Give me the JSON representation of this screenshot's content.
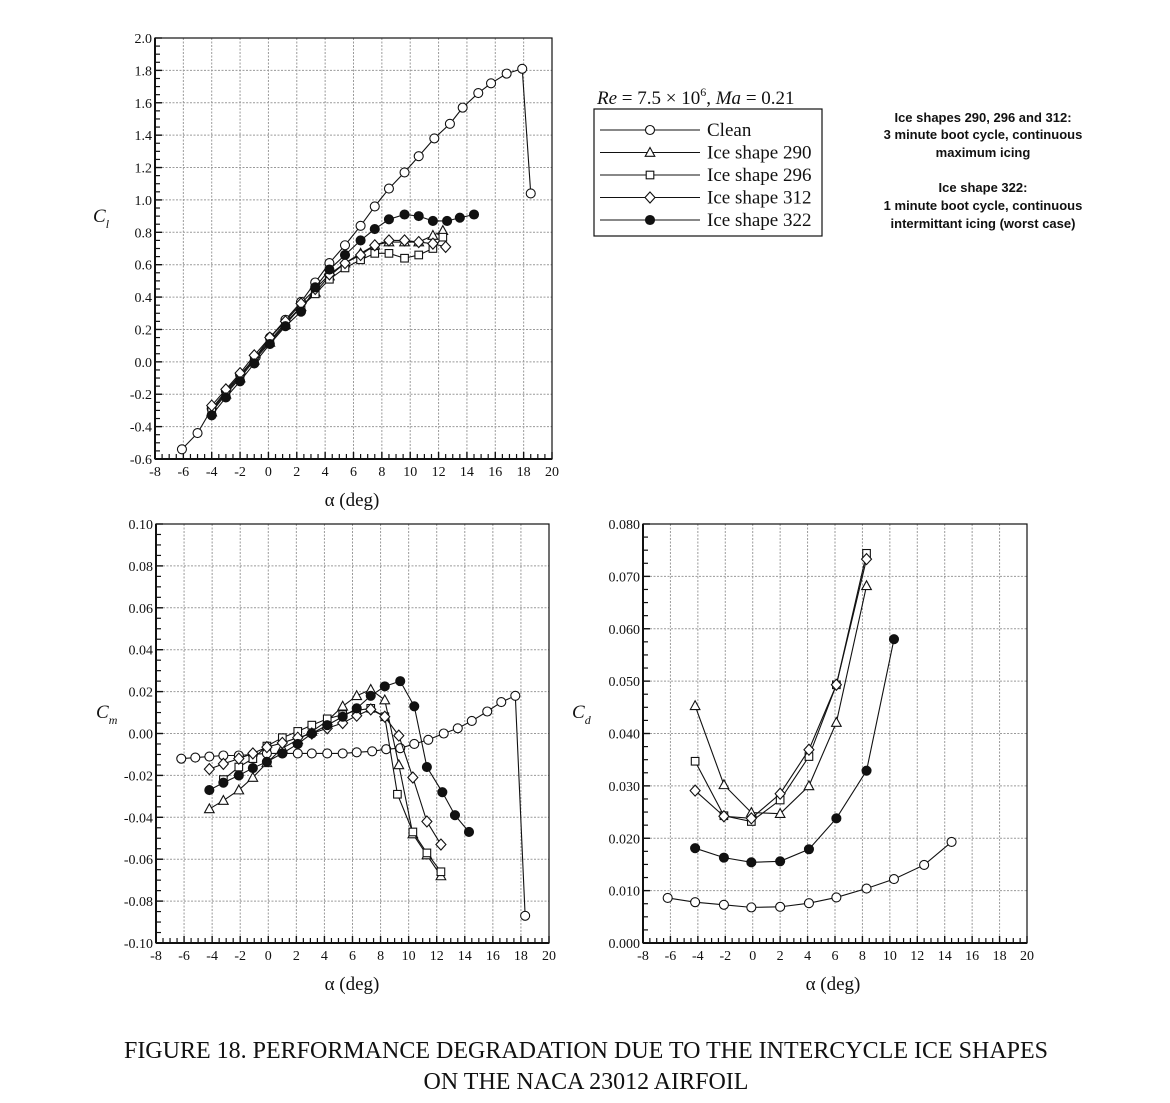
{
  "legend": {
    "title": "Re = 7.5 × 10⁶, Ma = 0.21",
    "title_parts": {
      "re": "Re",
      "eq1": " = 7.5 × 10",
      "exp": "6",
      "comma": ", ",
      "ma": "Ma",
      "eq2": " = 0.21"
    },
    "entries": [
      {
        "label": "Clean",
        "marker": "open-circle"
      },
      {
        "label": "Ice shape 290",
        "marker": "open-triangle"
      },
      {
        "label": "Ice shape 296",
        "marker": "open-square"
      },
      {
        "label": "Ice shape 312",
        "marker": "open-diamond"
      },
      {
        "label": "Ice shape 322",
        "marker": "filled-circle"
      }
    ],
    "placement": "top-right of lift plot"
  },
  "notes": {
    "group1": [
      "Ice shapes 290, 296 and 312:",
      "3 minute boot cycle, continuous",
      "maximum icing"
    ],
    "group2": [
      "Ice shape 322:",
      "1 minute boot cycle, continuous",
      "intermittant icing (worst case)"
    ]
  },
  "caption": [
    "FIGURE 18.  PERFORMANCE DEGRADATION DUE TO THE INTERCYCLE ICE SHAPES",
    "ON THE NACA 23012 AIRFOIL"
  ],
  "colors": {
    "line": "#111111",
    "grid": "#9a9a9a",
    "background": "#ffffff"
  },
  "chart_data": [
    {
      "type": "line",
      "id": "cl",
      "xlabel": "α (deg)",
      "ylabel": "C_l",
      "ylabel_main": "C",
      "ylabel_sub": "l",
      "xlim": [
        -8,
        20
      ],
      "ylim": [
        -0.6,
        2.0
      ],
      "xticks": [
        "-8",
        "-6",
        "-4",
        "-2",
        "0",
        "2",
        "4",
        "6",
        "8",
        "10",
        "12",
        "14",
        "16",
        "18",
        "20"
      ],
      "yticks": [
        "2.0",
        "1.8",
        "1.6",
        "1.4",
        "1.2",
        "1.0",
        "0.8",
        "0.6",
        "0.4",
        "0.2",
        "0.0",
        "-0.2",
        "-0.4",
        "-0.6"
      ],
      "grid": true,
      "series": [
        {
          "name": "Clean",
          "marker": "open-circle",
          "x": [
            -6.1,
            -5.0,
            -4.0,
            -3.0,
            -2.0,
            -0.9,
            0.1,
            1.2,
            2.3,
            3.3,
            4.3,
            5.4,
            6.5,
            7.5,
            8.5,
            9.6,
            10.6,
            11.7,
            12.8,
            13.7,
            14.8,
            15.7,
            16.8,
            17.9,
            18.5
          ],
          "y": [
            -0.54,
            -0.44,
            -0.29,
            -0.18,
            -0.08,
            0.03,
            0.15,
            0.26,
            0.37,
            0.49,
            0.61,
            0.72,
            0.84,
            0.96,
            1.07,
            1.17,
            1.27,
            1.38,
            1.47,
            1.57,
            1.66,
            1.72,
            1.78,
            1.81,
            1.04
          ]
        },
        {
          "name": "Ice shape 290",
          "marker": "open-triangle",
          "x": [
            -4.0,
            -3.0,
            -2.0,
            -1.0,
            0.1,
            1.2,
            2.3,
            3.3,
            4.3,
            5.4,
            6.5,
            7.5,
            8.5,
            9.6,
            10.6,
            11.6,
            12.3
          ],
          "y": [
            -0.31,
            -0.2,
            -0.1,
            0.01,
            0.12,
            0.23,
            0.34,
            0.43,
            0.53,
            0.61,
            0.67,
            0.72,
            0.74,
            0.74,
            0.74,
            0.78,
            0.81
          ]
        },
        {
          "name": "Ice shape 296",
          "marker": "open-square",
          "x": [
            -4.0,
            -3.0,
            -2.0,
            -1.0,
            0.1,
            1.2,
            2.3,
            3.3,
            4.3,
            5.4,
            6.5,
            7.5,
            8.5,
            9.6,
            10.6,
            11.6,
            12.3
          ],
          "y": [
            -0.3,
            -0.19,
            -0.09,
            0.02,
            0.13,
            0.24,
            0.34,
            0.42,
            0.51,
            0.58,
            0.63,
            0.67,
            0.67,
            0.64,
            0.66,
            0.7,
            0.77
          ]
        },
        {
          "name": "Ice shape 312",
          "marker": "open-diamond",
          "x": [
            -4.0,
            -3.0,
            -2.0,
            -1.0,
            0.1,
            1.2,
            2.3,
            3.3,
            4.3,
            5.4,
            6.5,
            7.5,
            8.5,
            9.6,
            10.6,
            11.6,
            12.5
          ],
          "y": [
            -0.27,
            -0.17,
            -0.07,
            0.04,
            0.15,
            0.25,
            0.36,
            0.45,
            0.54,
            0.61,
            0.66,
            0.72,
            0.75,
            0.75,
            0.74,
            0.73,
            0.71
          ]
        },
        {
          "name": "Ice shape 322",
          "marker": "filled-circle",
          "x": [
            -4.0,
            -3.0,
            -2.0,
            -1.0,
            0.1,
            1.2,
            2.3,
            3.3,
            4.3,
            5.4,
            6.5,
            7.5,
            8.5,
            9.6,
            10.6,
            11.6,
            12.6,
            13.5,
            14.5
          ],
          "y": [
            -0.33,
            -0.22,
            -0.12,
            -0.01,
            0.11,
            0.22,
            0.31,
            0.46,
            0.57,
            0.66,
            0.75,
            0.82,
            0.88,
            0.91,
            0.9,
            0.87,
            0.87,
            0.89,
            0.91
          ]
        }
      ]
    },
    {
      "type": "line",
      "id": "cm",
      "xlabel": "α (deg)",
      "ylabel": "C_m",
      "ylabel_main": "C",
      "ylabel_sub": "m",
      "xlim": [
        -8,
        20
      ],
      "ylim": [
        -0.1,
        0.1
      ],
      "xticks": [
        "-8",
        "-6",
        "-4",
        "-2",
        "0",
        "2",
        "4",
        "6",
        "8",
        "10",
        "12",
        "14",
        "16",
        "18",
        "20"
      ],
      "yticks": [
        "0.10",
        "0.08",
        "0.06",
        "0.04",
        "0.02",
        "0.00",
        "-0.02",
        "-0.04",
        "-0.06",
        "-0.08",
        "-0.10"
      ],
      "grid": true,
      "series": [
        {
          "name": "Clean",
          "marker": "open-circle",
          "x": [
            -6.2,
            -5.2,
            -4.2,
            -3.2,
            -2.1,
            -1.1,
            -0.1,
            1.0,
            2.1,
            3.1,
            4.2,
            5.3,
            6.3,
            7.4,
            8.4,
            9.4,
            10.4,
            11.4,
            12.5,
            13.5,
            14.5,
            15.6,
            16.6,
            17.6,
            18.3
          ],
          "y": [
            -0.012,
            -0.0115,
            -0.011,
            -0.0105,
            -0.0105,
            -0.01,
            -0.0095,
            -0.0095,
            -0.0095,
            -0.0095,
            -0.0095,
            -0.0095,
            -0.009,
            -0.0085,
            -0.0075,
            -0.007,
            -0.005,
            -0.003,
            0.0,
            0.0025,
            0.006,
            0.0105,
            0.015,
            0.018,
            -0.087
          ]
        },
        {
          "name": "Ice shape 290",
          "marker": "open-triangle",
          "x": [
            -4.2,
            -3.2,
            -2.1,
            -1.1,
            -0.1,
            1.0,
            2.1,
            3.1,
            4.2,
            5.3,
            6.3,
            7.3,
            8.3,
            9.3,
            10.3,
            11.3,
            12.3
          ],
          "y": [
            -0.036,
            -0.032,
            -0.027,
            -0.021,
            -0.014,
            -0.007,
            -0.003,
            0.001,
            0.006,
            0.013,
            0.018,
            0.021,
            0.016,
            -0.015,
            -0.048,
            -0.058,
            -0.068
          ]
        },
        {
          "name": "Ice shape 296",
          "marker": "open-square",
          "x": [
            -3.2,
            -2.1,
            -1.1,
            -0.1,
            1.0,
            2.1,
            3.1,
            4.2,
            5.3,
            6.3,
            7.3,
            8.3,
            9.2,
            10.3,
            11.3,
            12.3
          ],
          "y": [
            -0.022,
            -0.016,
            -0.012,
            -0.006,
            -0.002,
            0.001,
            0.004,
            0.007,
            0.009,
            0.011,
            0.012,
            0.008,
            -0.029,
            -0.047,
            -0.057,
            -0.066
          ]
        },
        {
          "name": "Ice shape 312",
          "marker": "open-diamond",
          "x": [
            -4.2,
            -3.2,
            -2.1,
            -1.1,
            -0.1,
            1.0,
            2.1,
            3.1,
            4.2,
            5.3,
            6.3,
            7.3,
            8.3,
            9.3,
            10.3,
            11.3,
            12.3
          ],
          "y": [
            -0.017,
            -0.0145,
            -0.012,
            -0.0095,
            -0.0065,
            -0.0045,
            -0.002,
            0.0,
            0.0025,
            0.005,
            0.0085,
            0.0115,
            0.008,
            -0.001,
            -0.021,
            -0.042,
            -0.053
          ]
        },
        {
          "name": "Ice shape 322",
          "marker": "filled-circle",
          "x": [
            -4.2,
            -3.2,
            -2.1,
            -1.1,
            -0.1,
            1.0,
            2.1,
            3.1,
            4.2,
            5.3,
            6.3,
            7.3,
            8.3,
            9.4,
            10.4,
            11.3,
            12.4,
            13.3,
            14.3
          ],
          "y": [
            -0.027,
            -0.0235,
            -0.02,
            -0.0165,
            -0.0135,
            -0.0095,
            -0.005,
            0.0,
            0.004,
            0.008,
            0.012,
            0.018,
            0.0225,
            0.025,
            0.013,
            -0.016,
            -0.028,
            -0.039,
            -0.047
          ]
        }
      ]
    },
    {
      "type": "line",
      "id": "cd",
      "xlabel": "α (deg)",
      "ylabel": "C_d",
      "ylabel_main": "C",
      "ylabel_sub": "d",
      "xlim": [
        -8,
        20
      ],
      "ylim": [
        0.0,
        0.08
      ],
      "xticks": [
        "-8",
        "-6",
        "-4",
        "-2",
        "0",
        "2",
        "4",
        "6",
        "8",
        "10",
        "12",
        "14",
        "16",
        "18",
        "20"
      ],
      "yticks": [
        "0.080",
        "0.070",
        "0.060",
        "0.050",
        "0.040",
        "0.030",
        "0.020",
        "0.010",
        "0.000"
      ],
      "grid": true,
      "series": [
        {
          "name": "Clean",
          "marker": "open-circle",
          "x": [
            -6.2,
            -4.2,
            -2.1,
            -0.1,
            2.0,
            4.1,
            6.1,
            8.3,
            10.3,
            12.5,
            14.5
          ],
          "y": [
            0.0086,
            0.0078,
            0.0073,
            0.0068,
            0.0069,
            0.0076,
            0.0087,
            0.0104,
            0.0122,
            0.0149,
            0.0193
          ]
        },
        {
          "name": "Ice shape 290",
          "marker": "open-triangle",
          "x": [
            -4.2,
            -2.1,
            -0.1,
            2.0,
            4.1,
            6.1,
            8.3
          ],
          "y": [
            0.0453,
            0.0302,
            0.0249,
            0.0247,
            0.03,
            0.0421,
            0.0682
          ]
        },
        {
          "name": "Ice shape 296",
          "marker": "open-square",
          "x": [
            -4.2,
            -2.1,
            -0.1,
            2.0,
            4.1,
            6.1,
            8.3
          ],
          "y": [
            0.0347,
            0.0243,
            0.0232,
            0.0273,
            0.0356,
            0.0493,
            0.0744
          ]
        },
        {
          "name": "Ice shape 312",
          "marker": "open-diamond",
          "x": [
            -4.2,
            -2.1,
            -0.1,
            2.0,
            4.1,
            6.1,
            8.3
          ],
          "y": [
            0.0291,
            0.0242,
            0.0238,
            0.0285,
            0.0369,
            0.0493,
            0.0733
          ]
        },
        {
          "name": "Ice shape 322",
          "marker": "filled-circle",
          "x": [
            -4.2,
            -2.1,
            -0.1,
            2.0,
            4.1,
            6.1,
            8.3,
            10.3
          ],
          "y": [
            0.0181,
            0.0163,
            0.0154,
            0.0156,
            0.0179,
            0.0238,
            0.0329,
            0.058
          ]
        }
      ]
    }
  ]
}
